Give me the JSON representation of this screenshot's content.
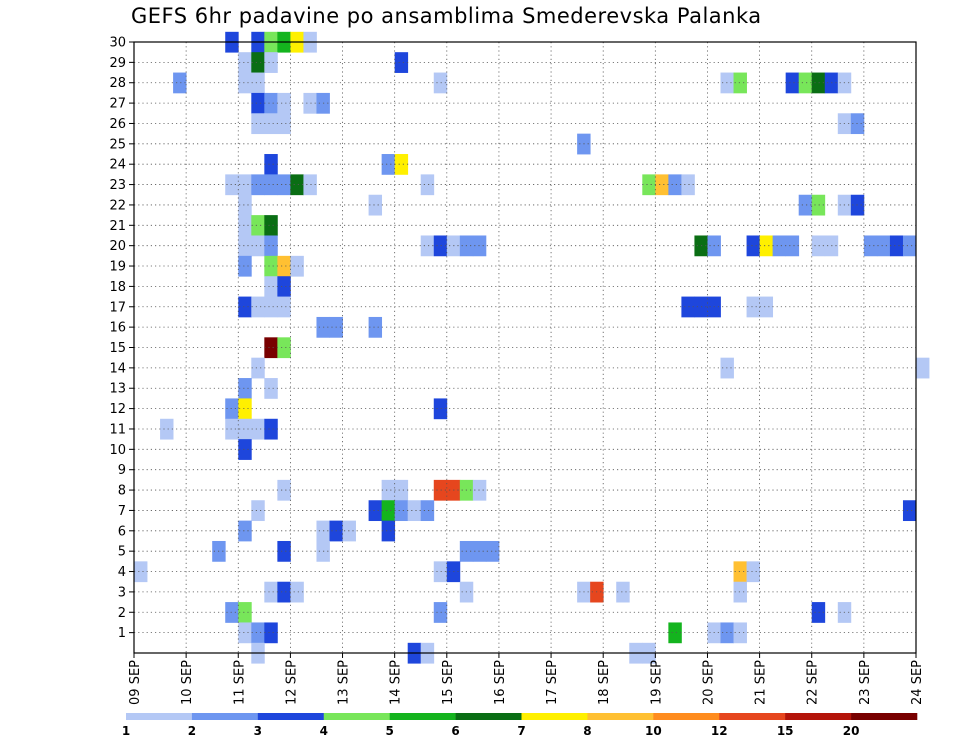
{
  "chart_data": {
    "type": "heatmap",
    "title": "GEFS 6hr padavine po ansamblima Smederevska Palanka",
    "xlabel": "",
    "ylabel": "",
    "x_tick_labels": [
      "09 SEP",
      "10 SEP",
      "11 SEP",
      "12 SEP",
      "13 SEP",
      "14 SEP",
      "15 SEP",
      "16 SEP",
      "17 SEP",
      "18 SEP",
      "19 SEP",
      "20 SEP",
      "21 SEP",
      "22 SEP",
      "23 SEP",
      "24 SEP"
    ],
    "y_tick_labels": [
      "1",
      "2",
      "3",
      "4",
      "5",
      "6",
      "7",
      "8",
      "9",
      "10",
      "11",
      "12",
      "13",
      "14",
      "15",
      "16",
      "17",
      "18",
      "19",
      "20",
      "21",
      "22",
      "23",
      "24",
      "25",
      "26",
      "27",
      "28",
      "29",
      "30"
    ],
    "x_unit": "6-hour steps from 09 SEP",
    "x_range": [
      0,
      60
    ],
    "y_range": [
      0,
      30
    ],
    "grid": true,
    "colorbar": {
      "labels": [
        "1",
        "2",
        "3",
        "4",
        "5",
        "6",
        "7",
        "8",
        "10",
        "12",
        "15",
        "20"
      ],
      "colors": [
        "#b4c8f5",
        "#6e96f0",
        "#1e46dc",
        "#78e65a",
        "#14b41e",
        "#0a6e14",
        "#fff000",
        "#ffc032",
        "#ff8c1e",
        "#e6461e",
        "#b4140a",
        "#780000"
      ]
    },
    "cells": [
      {
        "m": 30,
        "x": 7,
        "c": 2
      },
      {
        "m": 30,
        "x": 9,
        "c": 2
      },
      {
        "m": 30,
        "x": 10,
        "c": 3
      },
      {
        "m": 30,
        "x": 11,
        "c": 4
      },
      {
        "m": 30,
        "x": 12,
        "c": 6
      },
      {
        "m": 30,
        "x": 13,
        "c": 0
      },
      {
        "m": 29,
        "x": 8,
        "c": 0
      },
      {
        "m": 29,
        "x": 9,
        "c": 5
      },
      {
        "m": 29,
        "x": 10,
        "c": 0
      },
      {
        "m": 29,
        "x": 20,
        "c": 2
      },
      {
        "m": 28,
        "x": 3,
        "c": 1
      },
      {
        "m": 28,
        "x": 8,
        "c": 0
      },
      {
        "m": 28,
        "x": 9,
        "c": 0
      },
      {
        "m": 28,
        "x": 23,
        "c": 0
      },
      {
        "m": 28,
        "x": 45,
        "c": 0
      },
      {
        "m": 28,
        "x": 46,
        "c": 3
      },
      {
        "m": 28,
        "x": 50,
        "c": 2
      },
      {
        "m": 28,
        "x": 51,
        "c": 3
      },
      {
        "m": 28,
        "x": 52,
        "c": 5
      },
      {
        "m": 28,
        "x": 53,
        "c": 2
      },
      {
        "m": 28,
        "x": 54,
        "c": 0
      },
      {
        "m": 27,
        "x": 9,
        "c": 2
      },
      {
        "m": 27,
        "x": 10,
        "c": 1
      },
      {
        "m": 27,
        "x": 11,
        "c": 0
      },
      {
        "m": 27,
        "x": 13,
        "c": 0
      },
      {
        "m": 27,
        "x": 14,
        "c": 1
      },
      {
        "m": 26,
        "x": 9,
        "c": 0
      },
      {
        "m": 26,
        "x": 10,
        "c": 0
      },
      {
        "m": 26,
        "x": 11,
        "c": 0
      },
      {
        "m": 26,
        "x": 54,
        "c": 0
      },
      {
        "m": 26,
        "x": 55,
        "c": 1
      },
      {
        "m": 25,
        "x": 34,
        "c": 1
      },
      {
        "m": 24,
        "x": 10,
        "c": 2
      },
      {
        "m": 24,
        "x": 19,
        "c": 1
      },
      {
        "m": 24,
        "x": 20,
        "c": 6
      },
      {
        "m": 23,
        "x": 7,
        "c": 0
      },
      {
        "m": 23,
        "x": 8,
        "c": 0
      },
      {
        "m": 23,
        "x": 9,
        "c": 1
      },
      {
        "m": 23,
        "x": 10,
        "c": 1
      },
      {
        "m": 23,
        "x": 11,
        "c": 1
      },
      {
        "m": 23,
        "x": 12,
        "c": 5
      },
      {
        "m": 23,
        "x": 13,
        "c": 0
      },
      {
        "m": 23,
        "x": 22,
        "c": 0
      },
      {
        "m": 23,
        "x": 39,
        "c": 3
      },
      {
        "m": 23,
        "x": 40,
        "c": 7
      },
      {
        "m": 23,
        "x": 41,
        "c": 1
      },
      {
        "m": 23,
        "x": 42,
        "c": 0
      },
      {
        "m": 22,
        "x": 8,
        "c": 0
      },
      {
        "m": 22,
        "x": 18,
        "c": 0
      },
      {
        "m": 22,
        "x": 51,
        "c": 1
      },
      {
        "m": 22,
        "x": 52,
        "c": 3
      },
      {
        "m": 22,
        "x": 54,
        "c": 0
      },
      {
        "m": 22,
        "x": 55,
        "c": 2
      },
      {
        "m": 21,
        "x": 8,
        "c": 0
      },
      {
        "m": 21,
        "x": 9,
        "c": 3
      },
      {
        "m": 21,
        "x": 10,
        "c": 5
      },
      {
        "m": 20,
        "x": 8,
        "c": 0
      },
      {
        "m": 20,
        "x": 9,
        "c": 0
      },
      {
        "m": 20,
        "x": 10,
        "c": 1
      },
      {
        "m": 20,
        "x": 22,
        "c": 0
      },
      {
        "m": 20,
        "x": 23,
        "c": 2
      },
      {
        "m": 20,
        "x": 24,
        "c": 0
      },
      {
        "m": 20,
        "x": 25,
        "c": 1
      },
      {
        "m": 20,
        "x": 26,
        "c": 1
      },
      {
        "m": 20,
        "x": 43,
        "c": 5
      },
      {
        "m": 20,
        "x": 44,
        "c": 1
      },
      {
        "m": 20,
        "x": 47,
        "c": 2
      },
      {
        "m": 20,
        "x": 48,
        "c": 6
      },
      {
        "m": 20,
        "x": 49,
        "c": 1
      },
      {
        "m": 20,
        "x": 50,
        "c": 1
      },
      {
        "m": 20,
        "x": 52,
        "c": 0
      },
      {
        "m": 20,
        "x": 53,
        "c": 0
      },
      {
        "m": 20,
        "x": 56,
        "c": 1
      },
      {
        "m": 20,
        "x": 57,
        "c": 1
      },
      {
        "m": 20,
        "x": 58,
        "c": 2
      },
      {
        "m": 20,
        "x": 59,
        "c": 1
      },
      {
        "m": 19,
        "x": 8,
        "c": 1
      },
      {
        "m": 19,
        "x": 10,
        "c": 3
      },
      {
        "m": 19,
        "x": 11,
        "c": 7
      },
      {
        "m": 19,
        "x": 12,
        "c": 0
      },
      {
        "m": 18,
        "x": 10,
        "c": 0
      },
      {
        "m": 18,
        "x": 11,
        "c": 2
      },
      {
        "m": 17,
        "x": 8,
        "c": 2
      },
      {
        "m": 17,
        "x": 9,
        "c": 0
      },
      {
        "m": 17,
        "x": 10,
        "c": 0
      },
      {
        "m": 17,
        "x": 11,
        "c": 0
      },
      {
        "m": 17,
        "x": 42,
        "c": 2
      },
      {
        "m": 17,
        "x": 43,
        "c": 2
      },
      {
        "m": 17,
        "x": 44,
        "c": 2
      },
      {
        "m": 17,
        "x": 47,
        "c": 0
      },
      {
        "m": 17,
        "x": 48,
        "c": 0
      },
      {
        "m": 16,
        "x": 14,
        "c": 1
      },
      {
        "m": 16,
        "x": 15,
        "c": 1
      },
      {
        "m": 16,
        "x": 18,
        "c": 1
      },
      {
        "m": 15,
        "x": 10,
        "c": 11
      },
      {
        "m": 15,
        "x": 11,
        "c": 3
      },
      {
        "m": 14,
        "x": 9,
        "c": 0
      },
      {
        "m": 14,
        "x": 45,
        "c": 0
      },
      {
        "m": 14,
        "x": 60,
        "c": 0
      },
      {
        "m": 13,
        "x": 8,
        "c": 1
      },
      {
        "m": 13,
        "x": 10,
        "c": 0
      },
      {
        "m": 12,
        "x": 7,
        "c": 1
      },
      {
        "m": 12,
        "x": 8,
        "c": 6
      },
      {
        "m": 12,
        "x": 23,
        "c": 2
      },
      {
        "m": 11,
        "x": 2,
        "c": 0
      },
      {
        "m": 11,
        "x": 7,
        "c": 0
      },
      {
        "m": 11,
        "x": 8,
        "c": 0
      },
      {
        "m": 11,
        "x": 9,
        "c": 0
      },
      {
        "m": 11,
        "x": 10,
        "c": 2
      },
      {
        "m": 10,
        "x": 8,
        "c": 2
      },
      {
        "m": 8,
        "x": 11,
        "c": 0
      },
      {
        "m": 8,
        "x": 19,
        "c": 0
      },
      {
        "m": 8,
        "x": 20,
        "c": 0
      },
      {
        "m": 8,
        "x": 23,
        "c": 9
      },
      {
        "m": 8,
        "x": 24,
        "c": 9
      },
      {
        "m": 8,
        "x": 25,
        "c": 3
      },
      {
        "m": 8,
        "x": 26,
        "c": 0
      },
      {
        "m": 7,
        "x": 9,
        "c": 0
      },
      {
        "m": 7,
        "x": 18,
        "c": 2
      },
      {
        "m": 7,
        "x": 19,
        "c": 4
      },
      {
        "m": 7,
        "x": 20,
        "c": 1
      },
      {
        "m": 7,
        "x": 21,
        "c": 0
      },
      {
        "m": 7,
        "x": 22,
        "c": 1
      },
      {
        "m": 7,
        "x": 59,
        "c": 2
      },
      {
        "m": 6,
        "x": 8,
        "c": 1
      },
      {
        "m": 6,
        "x": 14,
        "c": 0
      },
      {
        "m": 6,
        "x": 15,
        "c": 2
      },
      {
        "m": 6,
        "x": 16,
        "c": 0
      },
      {
        "m": 6,
        "x": 19,
        "c": 2
      },
      {
        "m": 5,
        "x": 6,
        "c": 1
      },
      {
        "m": 5,
        "x": 11,
        "c": 2
      },
      {
        "m": 5,
        "x": 14,
        "c": 0
      },
      {
        "m": 5,
        "x": 25,
        "c": 1
      },
      {
        "m": 5,
        "x": 26,
        "c": 1
      },
      {
        "m": 5,
        "x": 27,
        "c": 1
      },
      {
        "m": 4,
        "x": 0,
        "c": 0
      },
      {
        "m": 4,
        "x": 23,
        "c": 0
      },
      {
        "m": 4,
        "x": 24,
        "c": 2
      },
      {
        "m": 4,
        "x": 46,
        "c": 7
      },
      {
        "m": 4,
        "x": 47,
        "c": 0
      },
      {
        "m": 3,
        "x": 10,
        "c": 0
      },
      {
        "m": 3,
        "x": 11,
        "c": 2
      },
      {
        "m": 3,
        "x": 12,
        "c": 0
      },
      {
        "m": 3,
        "x": 25,
        "c": 0
      },
      {
        "m": 3,
        "x": 34,
        "c": 0
      },
      {
        "m": 3,
        "x": 35,
        "c": 9
      },
      {
        "m": 3,
        "x": 37,
        "c": 0
      },
      {
        "m": 3,
        "x": 46,
        "c": 0
      },
      {
        "m": 2,
        "x": 7,
        "c": 1
      },
      {
        "m": 2,
        "x": 8,
        "c": 3
      },
      {
        "m": 2,
        "x": 23,
        "c": 1
      },
      {
        "m": 2,
        "x": 52,
        "c": 2
      },
      {
        "m": 2,
        "x": 54,
        "c": 0
      },
      {
        "m": 1,
        "x": 8,
        "c": 0
      },
      {
        "m": 1,
        "x": 9,
        "c": 1
      },
      {
        "m": 1,
        "x": 10,
        "c": 2
      },
      {
        "m": 1,
        "x": 41,
        "c": 4
      },
      {
        "m": 1,
        "x": 44,
        "c": 0
      },
      {
        "m": 1,
        "x": 45,
        "c": 1
      },
      {
        "m": 1,
        "x": 46,
        "c": 0
      },
      {
        "m": 0,
        "x": 9,
        "c": 0
      },
      {
        "m": 0,
        "x": 21,
        "c": 2
      },
      {
        "m": 0,
        "x": 22,
        "c": 0
      },
      {
        "m": 0,
        "x": 38,
        "c": 0
      },
      {
        "m": 0,
        "x": 39,
        "c": 0
      }
    ]
  }
}
